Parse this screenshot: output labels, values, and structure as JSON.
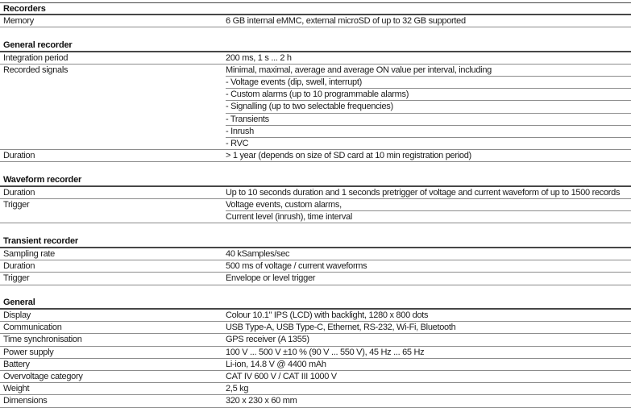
{
  "sections": [
    {
      "title": "Recorders",
      "rows": [
        {
          "label": "Memory",
          "value": "6 GB internal eMMC, external microSD of up to 32 GB supported"
        }
      ]
    },
    {
      "title": "General recorder",
      "rows": [
        {
          "label": "Integration period",
          "value": "200 ms, 1 s ... 2 h"
        },
        {
          "label": "Recorded signals",
          "value": "Minimal, maximal, average and average ON value per interval, including"
        },
        {
          "label": "",
          "value": "- Voltage events (dip, swell, interrupt)"
        },
        {
          "label": "",
          "value": "- Custom alarms (up to 10 programmable alarms)"
        },
        {
          "label": "",
          "value": "- Signalling (up to two selectable frequencies)"
        },
        {
          "label": "",
          "value": "- Transients"
        },
        {
          "label": "",
          "value": "- Inrush"
        },
        {
          "label": "",
          "value": "- RVC"
        },
        {
          "label": "Duration",
          "value": "> 1 year (depends on size of SD card at 10 min registration period)"
        }
      ]
    },
    {
      "title": "Waveform recorder",
      "rows": [
        {
          "label": "Duration",
          "value": "Up to 10 seconds duration and 1 seconds pretrigger of voltage and current waveform of up to 1500 records"
        },
        {
          "label": "Trigger",
          "value": "Voltage events, custom alarms,"
        },
        {
          "label": "",
          "value": "Current level (inrush), time interval"
        }
      ]
    },
    {
      "title": "Transient recorder",
      "rows": [
        {
          "label": "Sampling rate",
          "value": "40 kSamples/sec"
        },
        {
          "label": "Duration",
          "value": "500 ms of voltage / current waveforms"
        },
        {
          "label": "Trigger",
          "value": "Envelope or level trigger"
        }
      ]
    },
    {
      "title": "General",
      "rows": [
        {
          "label": "Display",
          "value": "Colour 10.1\" IPS (LCD) with backlight, 1280 x 800 dots"
        },
        {
          "label": "Communication",
          "value": "USB Type-A, USB Type-C, Ethernet, RS-232, Wi-Fi, Bluetooth"
        },
        {
          "label": "Time synchronisation",
          "value": "GPS receiver (A 1355)"
        },
        {
          "label": "Power supply",
          "value": "100 V ... 500 V ±10 % (90 V ... 550 V), 45 Hz ... 65 Hz"
        },
        {
          "label": "Battery",
          "value": "Li-ion, 14.8 V @ 4400 mAh"
        },
        {
          "label": "Overvoltage category",
          "value": "CAT IV 600 V / CAT III 1000 V"
        },
        {
          "label": "Weight",
          "value": "2,5 kg"
        },
        {
          "label": "Dimensions",
          "value": "320 x 230 x 60 mm"
        }
      ]
    }
  ],
  "colors": {
    "header_rule": "#474747",
    "row_rule": "#8c8c8c",
    "text": "#1c1c1c"
  }
}
